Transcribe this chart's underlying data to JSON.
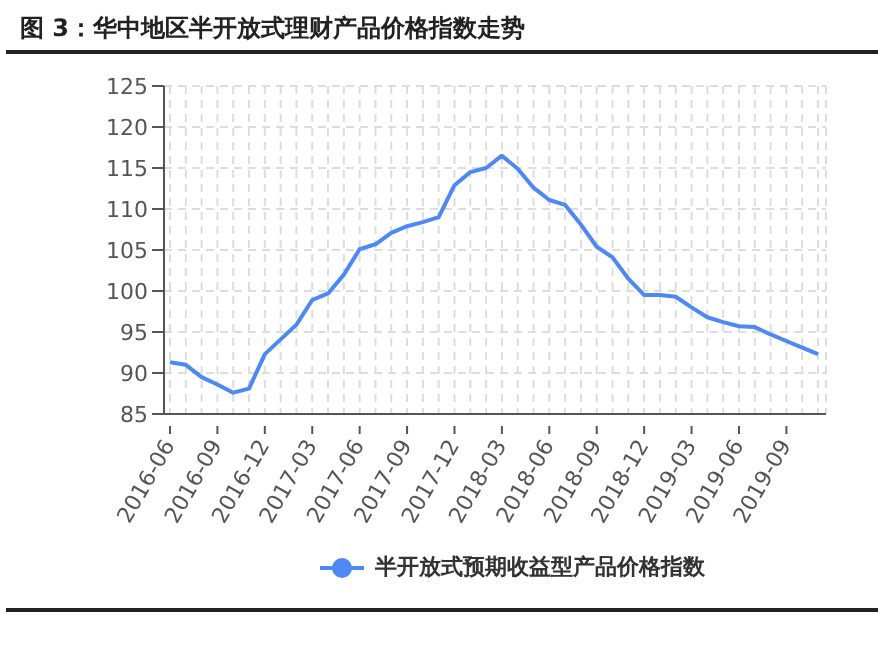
{
  "chart_data": {
    "type": "line",
    "title": "图 3：华中地区半开放式理财产品价格指数走势",
    "categories": [
      "2016-06",
      null,
      null,
      "2016-09",
      null,
      null,
      "2016-12",
      null,
      null,
      "2017-03",
      null,
      null,
      "2017-06",
      null,
      null,
      "2017-09",
      null,
      null,
      "2017-12",
      null,
      null,
      "2018-03",
      null,
      null,
      "2018-06",
      null,
      null,
      "2018-09",
      null,
      null,
      "2018-12",
      null,
      null,
      "2019-03",
      null,
      null,
      "2019-06",
      null,
      null,
      "2019-09",
      null,
      null
    ],
    "series": [
      {
        "name": "半开放式预期收益型产品价格指数",
        "color": "#4d88f5",
        "values": [
          91.3,
          91.0,
          89.5,
          88.6,
          87.6,
          88.1,
          92.3,
          94.1,
          95.9,
          98.9,
          99.7,
          102.0,
          105.1,
          105.7,
          107.1,
          107.9,
          108.4,
          109.0,
          112.9,
          114.5,
          115.0,
          116.5,
          114.9,
          112.6,
          111.1,
          110.5,
          108.1,
          105.4,
          104.1,
          101.5,
          99.5,
          99.5,
          99.3,
          98.0,
          96.8,
          96.2,
          95.7,
          95.6,
          94.7,
          93.9,
          93.1,
          92.3
        ]
      }
    ],
    "ylim": [
      85,
      125
    ],
    "yticks": [
      85,
      90,
      95,
      100,
      105,
      110,
      115,
      120,
      125
    ],
    "grid": true,
    "legend": "bottom",
    "marker": "none"
  }
}
